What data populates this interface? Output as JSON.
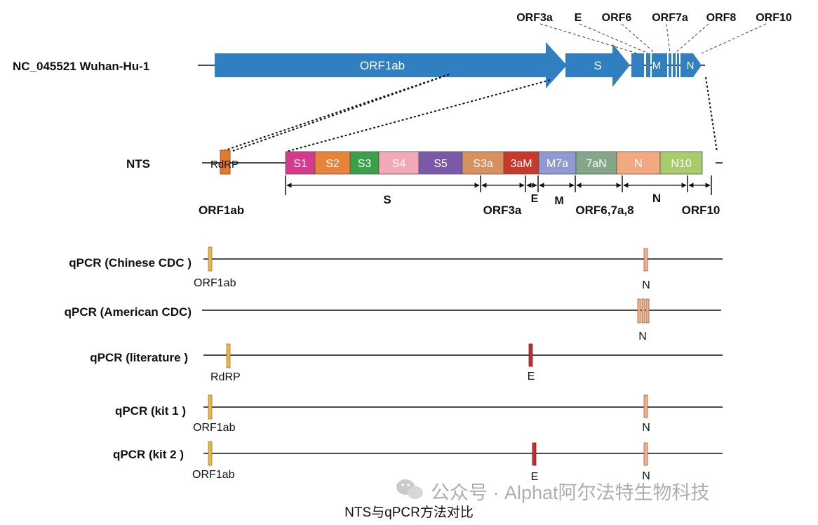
{
  "genome": {
    "label": "NC_045521 Wuhan-Hu-1",
    "orf1ab": "ORF1ab",
    "s": "S",
    "m": "M",
    "n": "N",
    "top_labels": [
      "ORF3a",
      "E",
      "ORF6",
      "ORF7a",
      "ORF8",
      "ORF10"
    ],
    "arrow_color": "#2f7fc1"
  },
  "nts": {
    "label": "NTS",
    "rdrp": "RdRP",
    "orf1ab_label": "ORF1ab",
    "segments": [
      {
        "label": "S1",
        "color": "#d63a8c"
      },
      {
        "label": "S2",
        "color": "#e8833a"
      },
      {
        "label": "S3",
        "color": "#3aa14a"
      },
      {
        "label": "S4",
        "color": "#f2a9b5"
      },
      {
        "label": "S5",
        "color": "#7a5aa8"
      },
      {
        "label": "S3a",
        "color": "#d99060"
      },
      {
        "label": "3aM",
        "color": "#c8382c"
      },
      {
        "label": "M7a",
        "color": "#8f9ad0"
      },
      {
        "label": "7aN",
        "color": "#86a68a"
      },
      {
        "label": "N",
        "color": "#f3a980"
      },
      {
        "label": "N10",
        "color": "#a8cc6c"
      }
    ],
    "regions": [
      "S",
      "ORF3a",
      "E",
      "M",
      "ORF6,7a,8",
      "N",
      "ORF10"
    ]
  },
  "qpcr": [
    {
      "label": "qPCR (Chinese CDC )",
      "targets": [
        "ORF1ab",
        "N"
      ]
    },
    {
      "label": "qPCR (American CDC)",
      "targets": [
        "N"
      ]
    },
    {
      "label": "qPCR (literature )",
      "targets": [
        "RdRP",
        "E"
      ]
    },
    {
      "label": "qPCR (kit 1 )",
      "targets": [
        "ORF1ab",
        "N"
      ]
    },
    {
      "label": "qPCR (kit 2 )",
      "targets": [
        "ORF1ab",
        "E",
        "N"
      ]
    }
  ],
  "watermark": "公众号 · Alphat阿尔法特生物科技",
  "caption": "NTS与qPCR方法对比"
}
